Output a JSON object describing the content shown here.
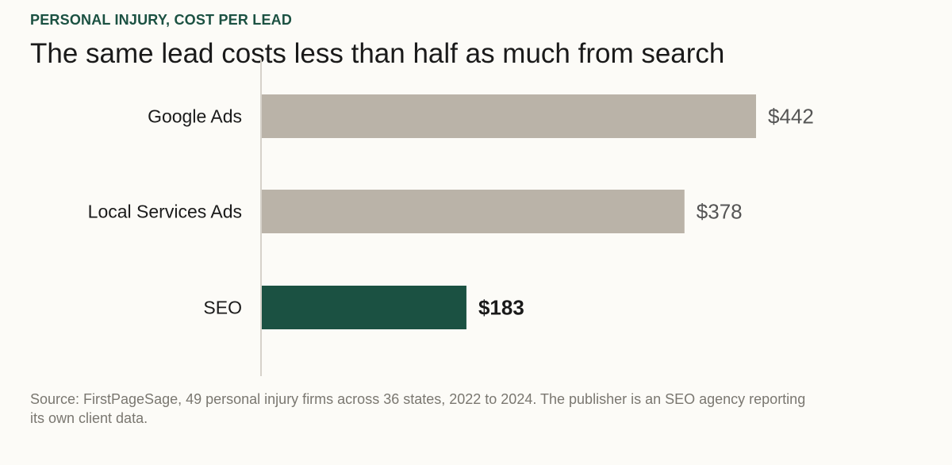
{
  "header": {
    "eyebrow": "PERSONAL INJURY, COST PER LEAD",
    "headline": "The same lead costs less than half as much from search"
  },
  "chart_data": {
    "type": "bar",
    "orientation": "horizontal",
    "categories": [
      "Google Ads",
      "Local Services Ads",
      "SEO"
    ],
    "values": [
      442,
      378,
      183
    ],
    "value_labels": [
      "$442",
      "$378",
      "$183"
    ],
    "highlight_index": 2,
    "xlim": [
      0,
      500
    ],
    "grid": false,
    "legend": "none"
  },
  "colors": {
    "accent": "#1b5142",
    "muted_bar": "#bab3a8",
    "axis": "#d6d2ca",
    "category_text": "#1a1a1a",
    "muted_label": "#555555",
    "highlight_label": "#1a1a1a"
  },
  "footer": {
    "source": "Source: FirstPageSage, 49 personal injury firms across 36 states, 2022 to 2024. The publisher is an SEO agency reporting its own client data."
  }
}
